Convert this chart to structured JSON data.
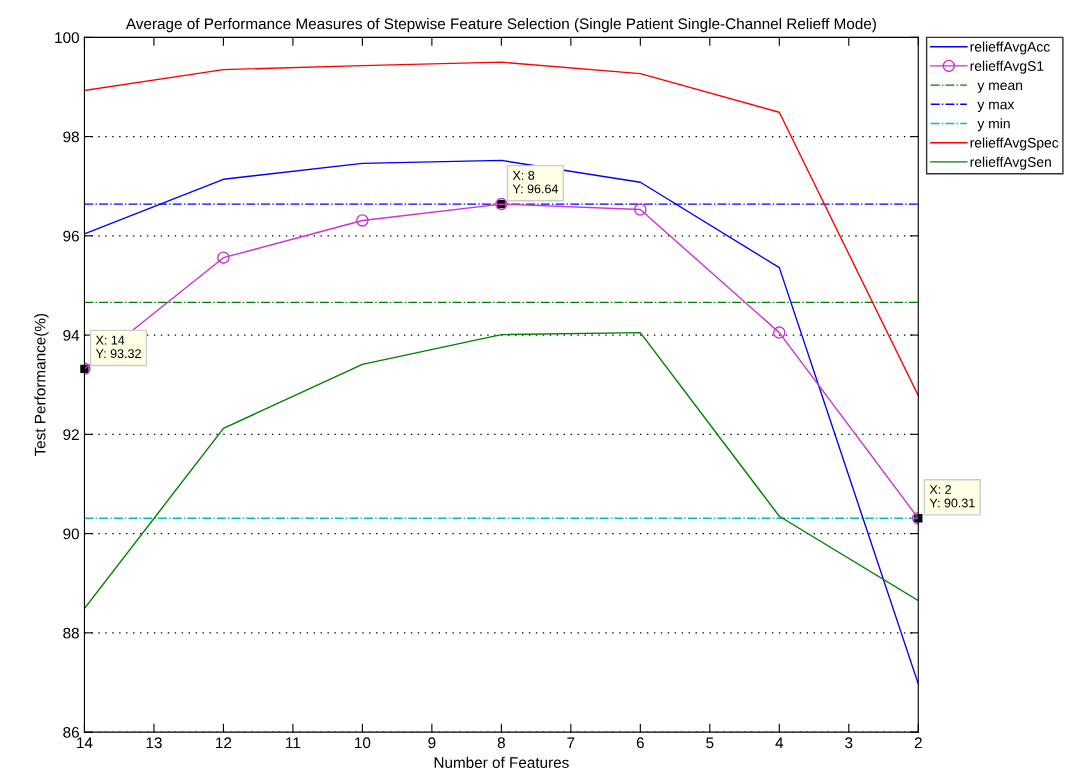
{
  "chart_data": {
    "type": "line",
    "title": "Average of Performance Measures of Stepwise Feature Selection (Single Patient Single-Channel Relieff Mode)",
    "xlabel": "Number of Features",
    "ylabel": "Test Performance(%)",
    "x": [
      14,
      12,
      10,
      8,
      6,
      4,
      2
    ],
    "xlim": [
      14,
      2
    ],
    "xticks": [
      14,
      13,
      12,
      11,
      10,
      9,
      8,
      7,
      6,
      5,
      4,
      3,
      2
    ],
    "ylim": [
      86,
      100
    ],
    "yticks": [
      86,
      88,
      90,
      92,
      94,
      96,
      98,
      100
    ],
    "grid": "y",
    "legend": "top right",
    "series": [
      {
        "name": "relieffAvgAcc",
        "color": "#0000ff",
        "values": [
          96.04,
          97.14,
          97.46,
          97.52,
          97.08,
          95.36,
          86.97
        ]
      },
      {
        "name": "relieffAvgS1",
        "color": "#cc33cc",
        "marker": "circle",
        "values": [
          93.32,
          95.56,
          96.31,
          96.64,
          96.53,
          94.05,
          90.31
        ]
      },
      {
        "name": "relieffAvgSpec",
        "color": "#ff0000",
        "values": [
          98.93,
          99.35,
          99.43,
          99.5,
          99.27,
          98.49,
          92.78
        ]
      },
      {
        "name": "relieffAvgSen",
        "color": "#008000",
        "values": [
          88.49,
          92.12,
          93.41,
          94.01,
          94.05,
          90.35,
          88.65
        ]
      }
    ],
    "ref_lines": [
      {
        "axis": "y",
        "value": 94.66,
        "label": "  y mean",
        "color": "#008000",
        "line_style": "dashdot"
      },
      {
        "axis": "y",
        "value": 96.64,
        "label": "  y max",
        "color": "#0000ff",
        "line_style": "dashdot"
      },
      {
        "axis": "y",
        "value": 90.31,
        "label": "  y min",
        "color": "#00bfbf",
        "line_style": "dashdot"
      }
    ],
    "annotations": [
      {
        "text": "X: 14\nY: 93.32",
        "x": 14,
        "y": 93.32
      },
      {
        "text": "X: 8\nY: 96.64",
        "x": 8,
        "y": 96.64
      },
      {
        "text": "X: 2\nY: 90.31",
        "x": 2,
        "y": 90.31
      }
    ]
  }
}
